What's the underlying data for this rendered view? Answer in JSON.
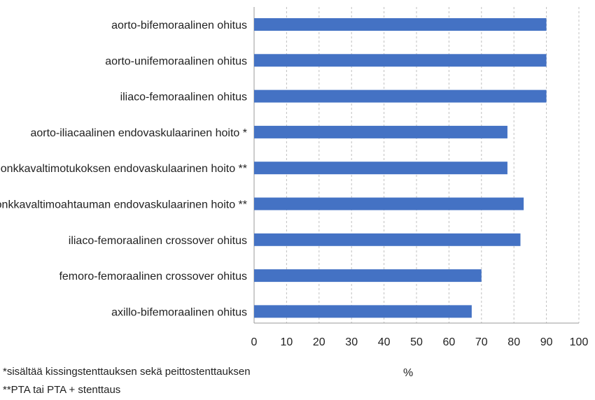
{
  "chart_data": {
    "type": "bar",
    "orientation": "horizontal",
    "categories": [
      "aorto-bifemoraalinen ohitus",
      "aorto-unifemoraalinen ohitus",
      "iliaco-femoraalinen ohitus",
      "aorto-iliacaalinen endovaskulaarinen hoito *",
      "lonkkavaltimotukoksen endovaskulaarinen hoito **",
      "lonkkavaltimoahtauman endovaskulaarinen hoito **",
      "iliaco-femoraalinen crossover ohitus",
      "femoro-femoraalinen crossover ohitus",
      "axillo-bifemoraalinen ohitus"
    ],
    "values": [
      90,
      90,
      90,
      78,
      78,
      83,
      82,
      70,
      67
    ],
    "xlabel": "%",
    "ylabel": "",
    "xlim": [
      0,
      100
    ],
    "xticks": [
      "0",
      "10",
      "20",
      "30",
      "40",
      "50",
      "60",
      "70",
      "80",
      "90",
      "100"
    ],
    "grid": "vertical dashed",
    "bar_color": "#4472c4",
    "grid_color": "#c0c0c0",
    "axis_color": "#999999"
  },
  "footnotes": [
    "*sisältää kissingstenttauksen sekä peittostenttauksen",
    "**PTA tai PTA + stenttaus"
  ]
}
